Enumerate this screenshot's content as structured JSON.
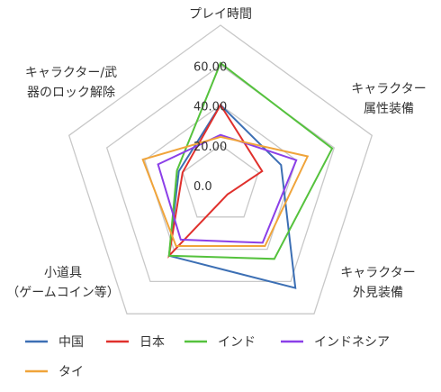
{
  "chart_data": {
    "type": "radar",
    "axes": [
      [
        "プレイ時間"
      ],
      [
        "キャラクター",
        "属性装備"
      ],
      [
        "キャラクター",
        "外見装備"
      ],
      [
        "小道具",
        "（ゲームコイン等）"
      ],
      [
        "キャラクター/武",
        "器のロック解除"
      ]
    ],
    "scale_max": 80,
    "tick_values": [
      0,
      20,
      40,
      60
    ],
    "tick_labels": [
      "0.0",
      "20.00",
      "40.00",
      "60.00"
    ],
    "grid": true,
    "legend_position": "bottom",
    "series": [
      {
        "name": "中国",
        "color": "#3c6fb4",
        "values": [
          40,
          32,
          64,
          44,
          22
        ]
      },
      {
        "name": "日本",
        "color": "#e0302c",
        "values": [
          40,
          22,
          6,
          44,
          20
        ]
      },
      {
        "name": "インド",
        "color": "#55c23d",
        "values": [
          61,
          59,
          46,
          44,
          23
        ]
      },
      {
        "name": "インドネシア",
        "color": "#8b3fe8",
        "values": [
          25,
          40,
          36,
          34,
          33
        ]
      },
      {
        "name": "タイ",
        "color": "#f0a43a",
        "values": [
          24,
          46,
          38,
          38,
          41
        ]
      }
    ]
  }
}
